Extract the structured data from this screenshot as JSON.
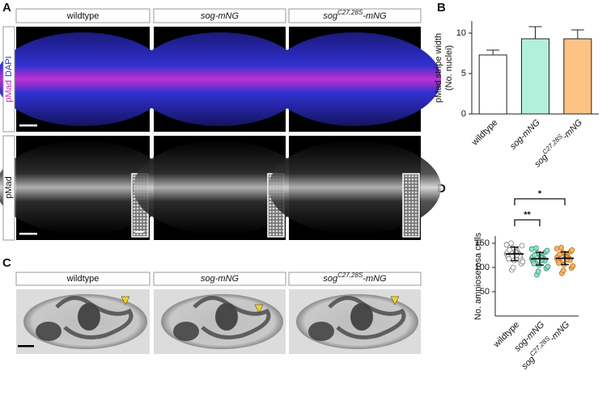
{
  "figure": {
    "panel_labels": [
      "A",
      "B",
      "C",
      "D"
    ],
    "genotypes": [
      {
        "text": "wildtype",
        "italic": false
      },
      {
        "text": "sog-mNG",
        "italic": true
      },
      {
        "text": "sog",
        "sup": "C27,28S",
        "tail": "-mNG",
        "italic": true
      }
    ],
    "row_labels_a": {
      "top": [
        "pMad",
        "DAPI"
      ],
      "bottom": "pMad"
    }
  },
  "chart_data": [
    {
      "type": "bar",
      "y_label": [
        "pMad stripe width",
        "(No. nuclei)"
      ],
      "categories": [
        {
          "text": "wildtype",
          "italic": false
        },
        {
          "text": "sog-mNG",
          "italic": true
        },
        {
          "text": "sog",
          "sup": "C27,28S",
          "tail": "-mNG",
          "italic": true
        }
      ],
      "values": [
        7.3,
        9.3,
        9.3
      ],
      "errors": [
        0.6,
        1.5,
        1.1
      ],
      "colors": [
        "#ffffff",
        "#b3f0dc",
        "#ffc285"
      ],
      "ylim": [
        0,
        11.5
      ],
      "yticks": [
        0,
        5,
        10
      ]
    },
    {
      "type": "strip",
      "y_label": "No. amnioserosa cells",
      "categories": [
        {
          "text": "wildtype",
          "italic": false
        },
        {
          "text": "sog-mNG",
          "italic": true
        },
        {
          "text": "sog",
          "sup": "C27,28S",
          "tail": "-mNG",
          "italic": true
        }
      ],
      "series": [
        {
          "color": "#ffffff",
          "stroke": "#777777",
          "values": [
            128,
            135,
            142,
            120,
            115,
            131,
            125,
            150,
            108,
            138,
            122,
            129,
            95,
            145,
            133,
            118,
            127,
            140,
            112,
            130,
            136,
            124,
            100,
            147,
            126
          ]
        },
        {
          "color": "#8fe3c8",
          "stroke": "#3a8f78",
          "values": [
            118,
            125,
            110,
            132,
            105,
            121,
            115,
            140,
            98,
            128,
            112,
            119,
            85,
            135,
            122,
            108,
            117,
            130,
            102,
            120,
            126,
            114,
            92,
            138,
            116
          ]
        },
        {
          "color": "#f7b466",
          "stroke": "#b8701e",
          "values": [
            119,
            126,
            111,
            133,
            106,
            122,
            116,
            141,
            99,
            129,
            113,
            120,
            88,
            136,
            123,
            109,
            118,
            131,
            103,
            121,
            127,
            115,
            94,
            139,
            117
          ]
        }
      ],
      "means": [
        128,
        118,
        119
      ],
      "sd": [
        14,
        13,
        13
      ],
      "significance": [
        {
          "pair": [
            0,
            1
          ],
          "label": "**"
        },
        {
          "pair": [
            0,
            2
          ],
          "label": "*"
        }
      ],
      "ylim": [
        0,
        165
      ],
      "yticks": [
        50,
        100,
        150
      ]
    }
  ]
}
